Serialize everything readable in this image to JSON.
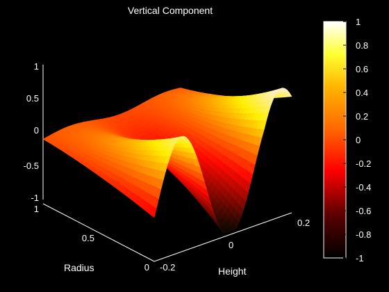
{
  "chart_data": {
    "type": "surface",
    "title": "Vertical Component",
    "colormap": "hot",
    "axes": {
      "x": {
        "label": "Height",
        "range": [
          -0.2,
          0.2
        ],
        "ticks": [
          "-0.2",
          "0",
          "0.2"
        ]
      },
      "y": {
        "label": "Radius",
        "range": [
          0,
          1
        ],
        "ticks": [
          "0",
          "0.5",
          "1"
        ]
      },
      "z": {
        "label": "",
        "range": [
          -1,
          1
        ],
        "ticks": [
          "-1",
          "-0.5",
          "0",
          "0.5",
          "1"
        ]
      }
    },
    "colorbar": {
      "range": [
        -1,
        1
      ],
      "ticks": [
        "1",
        "0.8",
        "0.6",
        "0.4",
        "0.2",
        "0",
        "-0.2",
        "-0.4",
        "-0.6",
        "-0.8",
        "-1"
      ],
      "position": "right"
    },
    "surface_description_values": {
      "peaks_along_height": [
        -0.12,
        0.02,
        0.18
      ],
      "min_value_near": {
        "height": -0.1,
        "radius": 0.1,
        "value": -0.9
      },
      "max_value_near": {
        "height": 0.2,
        "radius": 0.1,
        "value": 0.7
      }
    }
  }
}
